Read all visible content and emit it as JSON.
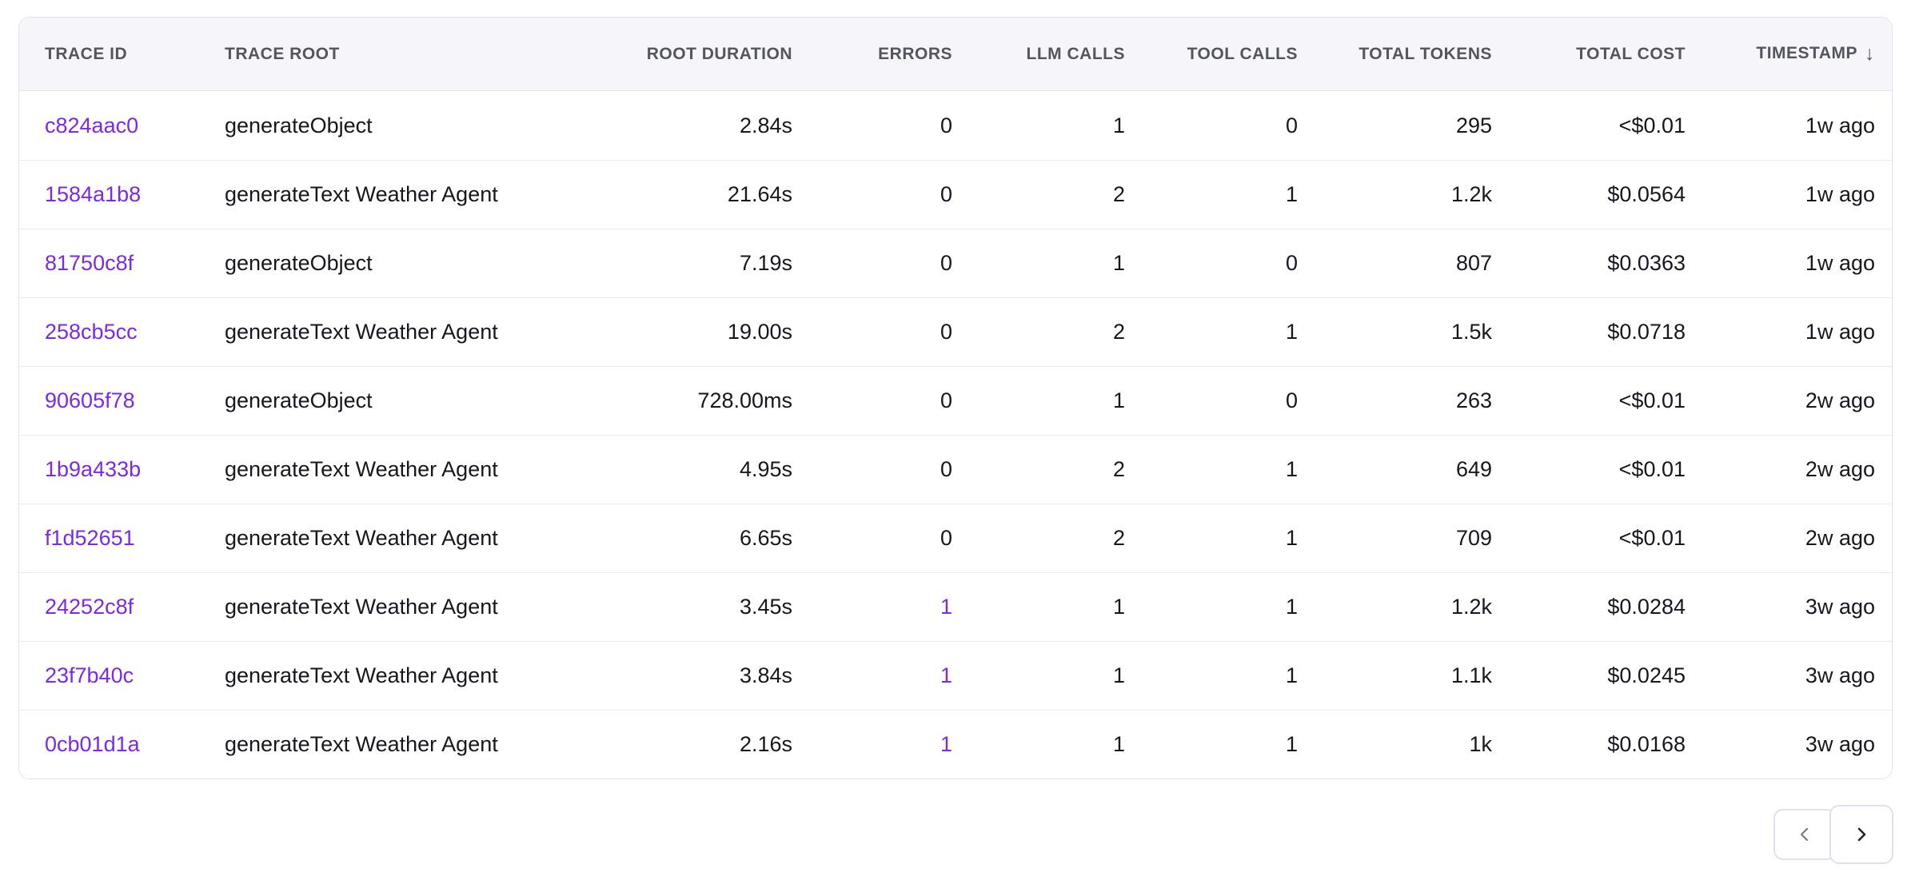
{
  "colors": {
    "accent_purple": "#7c2ae8",
    "header_bg": "#f6f5f9",
    "card_border": "#e4e1f0",
    "row_divider": "#eceaf5",
    "header_text": "#55555f",
    "body_text": "#17171f"
  },
  "table": {
    "columns": [
      {
        "key": "trace_id",
        "label": "TRACE ID",
        "align": "left"
      },
      {
        "key": "trace_root",
        "label": "TRACE ROOT",
        "align": "left"
      },
      {
        "key": "root_duration",
        "label": "ROOT DURATION",
        "align": "right"
      },
      {
        "key": "errors",
        "label": "ERRORS",
        "align": "right"
      },
      {
        "key": "llm_calls",
        "label": "LLM CALLS",
        "align": "right"
      },
      {
        "key": "tool_calls",
        "label": "TOOL CALLS",
        "align": "right"
      },
      {
        "key": "total_tokens",
        "label": "TOTAL TOKENS",
        "align": "right"
      },
      {
        "key": "total_cost",
        "label": "TOTAL COST",
        "align": "right"
      },
      {
        "key": "timestamp",
        "label": "TIMESTAMP",
        "align": "right",
        "sort": "desc",
        "sort_icon": "↓"
      }
    ],
    "rows": [
      {
        "trace_id": "c824aac0",
        "trace_root": "generateObject",
        "root_duration": "2.84s",
        "errors": "0",
        "errors_highlight": false,
        "llm_calls": "1",
        "tool_calls": "0",
        "total_tokens": "295",
        "total_cost": "<$0.01",
        "timestamp": "1w ago"
      },
      {
        "trace_id": "1584a1b8",
        "trace_root": "generateText Weather Agent",
        "root_duration": "21.64s",
        "errors": "0",
        "errors_highlight": false,
        "llm_calls": "2",
        "tool_calls": "1",
        "total_tokens": "1.2k",
        "total_cost": "$0.0564",
        "timestamp": "1w ago"
      },
      {
        "trace_id": "81750c8f",
        "trace_root": "generateObject",
        "root_duration": "7.19s",
        "errors": "0",
        "errors_highlight": false,
        "llm_calls": "1",
        "tool_calls": "0",
        "total_tokens": "807",
        "total_cost": "$0.0363",
        "timestamp": "1w ago"
      },
      {
        "trace_id": "258cb5cc",
        "trace_root": "generateText Weather Agent",
        "root_duration": "19.00s",
        "errors": "0",
        "errors_highlight": false,
        "llm_calls": "2",
        "tool_calls": "1",
        "total_tokens": "1.5k",
        "total_cost": "$0.0718",
        "timestamp": "1w ago"
      },
      {
        "trace_id": "90605f78",
        "trace_root": "generateObject",
        "root_duration": "728.00ms",
        "errors": "0",
        "errors_highlight": false,
        "llm_calls": "1",
        "tool_calls": "0",
        "total_tokens": "263",
        "total_cost": "<$0.01",
        "timestamp": "2w ago"
      },
      {
        "trace_id": "1b9a433b",
        "trace_root": "generateText Weather Agent",
        "root_duration": "4.95s",
        "errors": "0",
        "errors_highlight": false,
        "llm_calls": "2",
        "tool_calls": "1",
        "total_tokens": "649",
        "total_cost": "<$0.01",
        "timestamp": "2w ago"
      },
      {
        "trace_id": "f1d52651",
        "trace_root": "generateText Weather Agent",
        "root_duration": "6.65s",
        "errors": "0",
        "errors_highlight": false,
        "llm_calls": "2",
        "tool_calls": "1",
        "total_tokens": "709",
        "total_cost": "<$0.01",
        "timestamp": "2w ago"
      },
      {
        "trace_id": "24252c8f",
        "trace_root": "generateText Weather Agent",
        "root_duration": "3.45s",
        "errors": "1",
        "errors_highlight": true,
        "llm_calls": "1",
        "tool_calls": "1",
        "total_tokens": "1.2k",
        "total_cost": "$0.0284",
        "timestamp": "3w ago"
      },
      {
        "trace_id": "23f7b40c",
        "trace_root": "generateText Weather Agent",
        "root_duration": "3.84s",
        "errors": "1",
        "errors_highlight": true,
        "llm_calls": "1",
        "tool_calls": "1",
        "total_tokens": "1.1k",
        "total_cost": "$0.0245",
        "timestamp": "3w ago"
      },
      {
        "trace_id": "0cb01d1a",
        "trace_root": "generateText Weather Agent",
        "root_duration": "2.16s",
        "errors": "1",
        "errors_highlight": true,
        "llm_calls": "1",
        "tool_calls": "1",
        "total_tokens": "1k",
        "total_cost": "$0.0168",
        "timestamp": "3w ago"
      }
    ]
  }
}
